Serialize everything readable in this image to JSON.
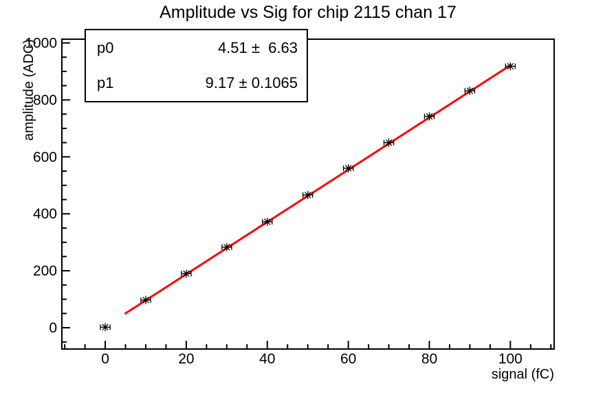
{
  "stats": {
    "p0": {
      "label": "p0",
      "value": "4.51 ±  6.63"
    },
    "p1": {
      "label": "p1",
      "value": "9.17 ± 0.1065"
    }
  },
  "chart_data": {
    "type": "scatter",
    "title": "Amplitude vs Sig for chip 2115 chan 17",
    "xlabel": "signal (fC)",
    "ylabel": "amplitude (ADC)",
    "x": [
      0,
      10,
      20,
      30,
      40,
      50,
      60,
      70,
      80,
      90,
      100
    ],
    "y": [
      2,
      97,
      190,
      283,
      372,
      466,
      560,
      650,
      742,
      832,
      918
    ],
    "x_error": 1.2,
    "xlim": [
      -10.7,
      110.8
    ],
    "ylim": [
      -74.8,
      1013.3
    ],
    "x_ticks": [
      0,
      20,
      40,
      60,
      80,
      100
    ],
    "y_ticks": [
      0,
      200,
      400,
      600,
      800,
      1000
    ],
    "x_minor_step": 5,
    "y_minor_step": 50,
    "grid": false,
    "legend_position": "none",
    "marker": "asterisk-with-x-error-bars",
    "fit": {
      "type": "linear",
      "p0": 4.51,
      "p1": 9.17,
      "x_min": 5,
      "x_max": 100
    },
    "colors": {
      "fit_line": "#ff0000",
      "marker": "#000000",
      "axes": "#000000",
      "background": "#ffffff"
    }
  }
}
